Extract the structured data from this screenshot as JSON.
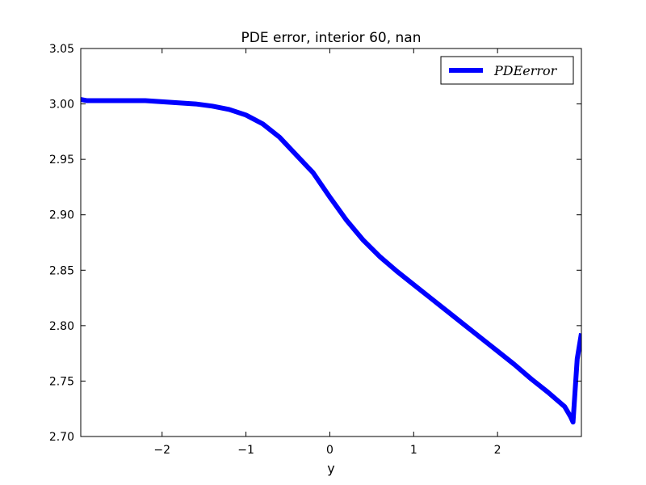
{
  "chart_data": {
    "type": "line",
    "title": "PDE error, interior 60, nan",
    "xlabel": "y",
    "ylabel": "",
    "xlim": [
      -2.97,
      3.0
    ],
    "ylim": [
      2.7,
      3.05
    ],
    "xticks": [
      -2,
      -1,
      0,
      1,
      2
    ],
    "xtick_labels": [
      "−2",
      "−1",
      "0",
      "1",
      "2"
    ],
    "yticks": [
      2.7,
      2.75,
      2.8,
      2.85,
      2.9,
      2.95,
      3.0,
      3.05
    ],
    "ytick_labels": [
      "2.70",
      "2.75",
      "2.80",
      "2.85",
      "2.90",
      "2.95",
      "3.00",
      "3.05"
    ],
    "legend_position": "top-right",
    "grid": false,
    "series": [
      {
        "name": "PDEerror",
        "color": "#0000ff",
        "x": [
          -2.97,
          -2.9,
          -2.8,
          -2.6,
          -2.4,
          -2.2,
          -2.0,
          -1.8,
          -1.6,
          -1.4,
          -1.2,
          -1.0,
          -0.8,
          -0.6,
          -0.4,
          -0.2,
          0.0,
          0.2,
          0.4,
          0.6,
          0.8,
          1.0,
          1.2,
          1.4,
          1.6,
          1.8,
          2.0,
          2.2,
          2.4,
          2.6,
          2.8,
          2.87,
          2.9,
          2.95,
          3.0
        ],
        "y": [
          3.004,
          3.003,
          3.003,
          3.003,
          3.003,
          3.003,
          3.002,
          3.001,
          3.0,
          2.998,
          2.995,
          2.99,
          2.982,
          2.97,
          2.954,
          2.938,
          2.916,
          2.895,
          2.877,
          2.862,
          2.849,
          2.837,
          2.825,
          2.813,
          2.801,
          2.789,
          2.777,
          2.765,
          2.752,
          2.74,
          2.727,
          2.718,
          2.713,
          2.77,
          2.793
        ]
      }
    ]
  }
}
